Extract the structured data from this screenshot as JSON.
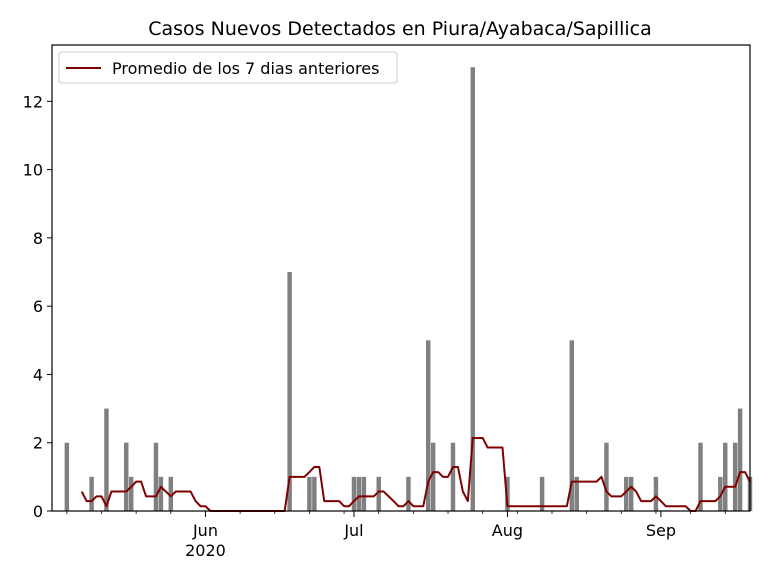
{
  "chart_data": {
    "type": "bar",
    "title": "Casos Nuevos Detectados en Piura/Ayabaca/Sapillica",
    "xlabel": "",
    "ylabel": "",
    "ylim": [
      0,
      13.65
    ],
    "xlim": [
      "2020-05-01",
      "2020-09-19"
    ],
    "yticks": [
      0,
      2,
      4,
      6,
      8,
      10,
      12
    ],
    "xticks": [
      {
        "date": "2020-06-01",
        "label": "Jun",
        "sublabel": "2020"
      },
      {
        "date": "2020-07-01",
        "label": "Jul",
        "sublabel": ""
      },
      {
        "date": "2020-08-01",
        "label": "Aug",
        "sublabel": ""
      },
      {
        "date": "2020-09-01",
        "label": "Sep",
        "sublabel": ""
      }
    ],
    "minor_tick_dates": [
      "2020-05-04",
      "2020-05-11",
      "2020-05-18",
      "2020-05-25",
      "2020-06-08",
      "2020-06-15",
      "2020-06-22",
      "2020-06-29",
      "2020-07-06",
      "2020-07-13",
      "2020-07-20",
      "2020-07-27",
      "2020-08-03",
      "2020-08-10",
      "2020-08-17",
      "2020-08-24",
      "2020-08-31",
      "2020-09-07",
      "2020-09-14"
    ],
    "grid": false,
    "legend_position": "top-left",
    "colors": {
      "bars": "#808080",
      "line": "#800000"
    },
    "series": [
      {
        "name": "",
        "kind": "bar",
        "points": [
          {
            "x": "2020-05-04",
            "y": 2
          },
          {
            "x": "2020-05-09",
            "y": 1
          },
          {
            "x": "2020-05-12",
            "y": 3
          },
          {
            "x": "2020-05-16",
            "y": 2
          },
          {
            "x": "2020-05-17",
            "y": 1
          },
          {
            "x": "2020-05-22",
            "y": 2
          },
          {
            "x": "2020-05-23",
            "y": 1
          },
          {
            "x": "2020-05-25",
            "y": 1
          },
          {
            "x": "2020-06-18",
            "y": 7
          },
          {
            "x": "2020-06-22",
            "y": 1
          },
          {
            "x": "2020-06-23",
            "y": 1
          },
          {
            "x": "2020-07-01",
            "y": 1
          },
          {
            "x": "2020-07-02",
            "y": 1
          },
          {
            "x": "2020-07-03",
            "y": 1
          },
          {
            "x": "2020-07-06",
            "y": 1
          },
          {
            "x": "2020-07-12",
            "y": 1
          },
          {
            "x": "2020-07-16",
            "y": 5
          },
          {
            "x": "2020-07-17",
            "y": 2
          },
          {
            "x": "2020-07-21",
            "y": 2
          },
          {
            "x": "2020-07-25",
            "y": 13
          },
          {
            "x": "2020-08-01",
            "y": 1
          },
          {
            "x": "2020-08-08",
            "y": 1
          },
          {
            "x": "2020-08-14",
            "y": 5
          },
          {
            "x": "2020-08-15",
            "y": 1
          },
          {
            "x": "2020-08-21",
            "y": 2
          },
          {
            "x": "2020-08-25",
            "y": 1
          },
          {
            "x": "2020-08-26",
            "y": 1
          },
          {
            "x": "2020-08-31",
            "y": 1
          },
          {
            "x": "2020-09-09",
            "y": 2
          },
          {
            "x": "2020-09-13",
            "y": 1
          },
          {
            "x": "2020-09-14",
            "y": 2
          },
          {
            "x": "2020-09-16",
            "y": 2
          },
          {
            "x": "2020-09-17",
            "y": 3
          },
          {
            "x": "2020-09-19",
            "y": 1
          }
        ]
      },
      {
        "name": "Promedio de los 7 dias anteriores",
        "kind": "line",
        "points": [
          {
            "x": "2020-05-07",
            "y": 0.57
          },
          {
            "x": "2020-05-08",
            "y": 0.29
          },
          {
            "x": "2020-05-09",
            "y": 0.29
          },
          {
            "x": "2020-05-10",
            "y": 0.43
          },
          {
            "x": "2020-05-11",
            "y": 0.43
          },
          {
            "x": "2020-05-12",
            "y": 0.14
          },
          {
            "x": "2020-05-13",
            "y": 0.57
          },
          {
            "x": "2020-05-14",
            "y": 0.57
          },
          {
            "x": "2020-05-15",
            "y": 0.57
          },
          {
            "x": "2020-05-16",
            "y": 0.57
          },
          {
            "x": "2020-05-17",
            "y": 0.71
          },
          {
            "x": "2020-05-18",
            "y": 0.86
          },
          {
            "x": "2020-05-19",
            "y": 0.86
          },
          {
            "x": "2020-05-20",
            "y": 0.43
          },
          {
            "x": "2020-05-21",
            "y": 0.43
          },
          {
            "x": "2020-05-22",
            "y": 0.43
          },
          {
            "x": "2020-05-23",
            "y": 0.71
          },
          {
            "x": "2020-05-24",
            "y": 0.57
          },
          {
            "x": "2020-05-25",
            "y": 0.43
          },
          {
            "x": "2020-05-26",
            "y": 0.57
          },
          {
            "x": "2020-05-27",
            "y": 0.57
          },
          {
            "x": "2020-05-28",
            "y": 0.57
          },
          {
            "x": "2020-05-29",
            "y": 0.57
          },
          {
            "x": "2020-05-30",
            "y": 0.29
          },
          {
            "x": "2020-05-31",
            "y": 0.14
          },
          {
            "x": "2020-06-01",
            "y": 0.14
          },
          {
            "x": "2020-06-02",
            "y": 0
          },
          {
            "x": "2020-06-17",
            "y": 0
          },
          {
            "x": "2020-06-18",
            "y": 1
          },
          {
            "x": "2020-06-19",
            "y": 1
          },
          {
            "x": "2020-06-20",
            "y": 1
          },
          {
            "x": "2020-06-21",
            "y": 1
          },
          {
            "x": "2020-06-22",
            "y": 1.14
          },
          {
            "x": "2020-06-23",
            "y": 1.29
          },
          {
            "x": "2020-06-24",
            "y": 1.29
          },
          {
            "x": "2020-06-25",
            "y": 0.29
          },
          {
            "x": "2020-06-26",
            "y": 0.29
          },
          {
            "x": "2020-06-27",
            "y": 0.29
          },
          {
            "x": "2020-06-28",
            "y": 0.29
          },
          {
            "x": "2020-06-29",
            "y": 0.14
          },
          {
            "x": "2020-06-30",
            "y": 0.14
          },
          {
            "x": "2020-07-01",
            "y": 0.29
          },
          {
            "x": "2020-07-02",
            "y": 0.43
          },
          {
            "x": "2020-07-03",
            "y": 0.43
          },
          {
            "x": "2020-07-04",
            "y": 0.43
          },
          {
            "x": "2020-07-05",
            "y": 0.43
          },
          {
            "x": "2020-07-06",
            "y": 0.57
          },
          {
            "x": "2020-07-07",
            "y": 0.57
          },
          {
            "x": "2020-07-08",
            "y": 0.43
          },
          {
            "x": "2020-07-09",
            "y": 0.29
          },
          {
            "x": "2020-07-10",
            "y": 0.14
          },
          {
            "x": "2020-07-11",
            "y": 0.14
          },
          {
            "x": "2020-07-12",
            "y": 0.29
          },
          {
            "x": "2020-07-13",
            "y": 0.14
          },
          {
            "x": "2020-07-14",
            "y": 0.14
          },
          {
            "x": "2020-07-15",
            "y": 0.14
          },
          {
            "x": "2020-07-16",
            "y": 0.86
          },
          {
            "x": "2020-07-17",
            "y": 1.14
          },
          {
            "x": "2020-07-18",
            "y": 1.14
          },
          {
            "x": "2020-07-19",
            "y": 1
          },
          {
            "x": "2020-07-20",
            "y": 1
          },
          {
            "x": "2020-07-21",
            "y": 1.29
          },
          {
            "x": "2020-07-22",
            "y": 1.29
          },
          {
            "x": "2020-07-23",
            "y": 0.57
          },
          {
            "x": "2020-07-24",
            "y": 0.29
          },
          {
            "x": "2020-07-25",
            "y": 2.14
          },
          {
            "x": "2020-07-26",
            "y": 2.14
          },
          {
            "x": "2020-07-27",
            "y": 2.14
          },
          {
            "x": "2020-07-28",
            "y": 1.86
          },
          {
            "x": "2020-07-29",
            "y": 1.86
          },
          {
            "x": "2020-07-30",
            "y": 1.86
          },
          {
            "x": "2020-07-31",
            "y": 1.86
          },
          {
            "x": "2020-08-01",
            "y": 0.14
          },
          {
            "x": "2020-08-13",
            "y": 0.14
          },
          {
            "x": "2020-08-14",
            "y": 0.86
          },
          {
            "x": "2020-08-15",
            "y": 0.86
          },
          {
            "x": "2020-08-19",
            "y": 0.86
          },
          {
            "x": "2020-08-20",
            "y": 1
          },
          {
            "x": "2020-08-21",
            "y": 0.57
          },
          {
            "x": "2020-08-22",
            "y": 0.43
          },
          {
            "x": "2020-08-23",
            "y": 0.43
          },
          {
            "x": "2020-08-24",
            "y": 0.43
          },
          {
            "x": "2020-08-25",
            "y": 0.57
          },
          {
            "x": "2020-08-26",
            "y": 0.71
          },
          {
            "x": "2020-08-27",
            "y": 0.57
          },
          {
            "x": "2020-08-28",
            "y": 0.29
          },
          {
            "x": "2020-08-29",
            "y": 0.29
          },
          {
            "x": "2020-08-30",
            "y": 0.29
          },
          {
            "x": "2020-08-31",
            "y": 0.43
          },
          {
            "x": "2020-09-01",
            "y": 0.29
          },
          {
            "x": "2020-09-02",
            "y": 0.14
          },
          {
            "x": "2020-09-06",
            "y": 0.14
          },
          {
            "x": "2020-09-07",
            "y": 0
          },
          {
            "x": "2020-09-08",
            "y": 0
          },
          {
            "x": "2020-09-09",
            "y": 0.29
          },
          {
            "x": "2020-09-10",
            "y": 0.29
          },
          {
            "x": "2020-09-11",
            "y": 0.29
          },
          {
            "x": "2020-09-12",
            "y": 0.29
          },
          {
            "x": "2020-09-13",
            "y": 0.43
          },
          {
            "x": "2020-09-14",
            "y": 0.71
          },
          {
            "x": "2020-09-15",
            "y": 0.71
          },
          {
            "x": "2020-09-16",
            "y": 0.71
          },
          {
            "x": "2020-09-17",
            "y": 1.14
          },
          {
            "x": "2020-09-18",
            "y": 1.14
          },
          {
            "x": "2020-09-19",
            "y": 0.86
          }
        ]
      }
    ]
  }
}
